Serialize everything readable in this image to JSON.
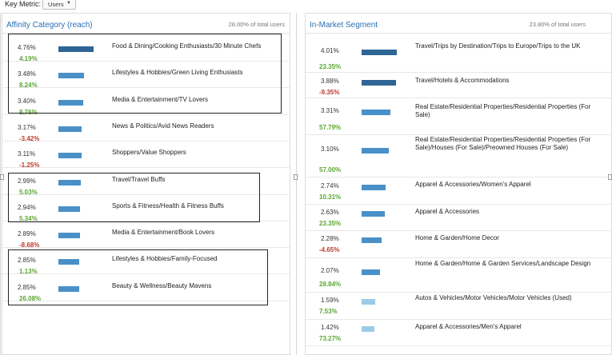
{
  "key_metric": {
    "label": "Key Metric:",
    "selected": "Users"
  },
  "affinity": {
    "title": "Affinity Category (reach)",
    "total": "28.00% of total users",
    "rows": [
      {
        "pct": "4.76%",
        "change": "4.19%",
        "name": "Food & Dining/Cooking Enthusiasts/30 Minute Chefs",
        "share": 4.76
      },
      {
        "pct": "3.48%",
        "change": "8.24%",
        "name": "Lifestyles & Hobbies/Green Living Enthusiasts",
        "share": 3.48
      },
      {
        "pct": "3.40%",
        "change": "8.76%",
        "name": "Media & Entertainment/TV Lovers",
        "share": 3.4
      },
      {
        "pct": "3.17%",
        "change": "-3.42%",
        "name": "News & Politics/Avid News Readers",
        "share": 3.17
      },
      {
        "pct": "3.11%",
        "change": "-1.25%",
        "name": "Shoppers/Value Shoppers",
        "share": 3.11
      },
      {
        "pct": "2.99%",
        "change": "5.03%",
        "name": "Travel/Travel Buffs",
        "share": 2.99
      },
      {
        "pct": "2.94%",
        "change": "5.34%",
        "name": "Sports & Fitness/Health & Fitness Buffs",
        "share": 2.94
      },
      {
        "pct": "2.89%",
        "change": "-8.68%",
        "name": "Media & Entertainment/Book Lovers",
        "share": 2.89
      },
      {
        "pct": "2.85%",
        "change": "1.13%",
        "name": "Lifestyles & Hobbies/Family-Focused",
        "share": 2.85
      },
      {
        "pct": "2.85%",
        "change": "26.08%",
        "name": "Beauty & Wellness/Beauty Mavens",
        "share": 2.85
      }
    ]
  },
  "inmarket": {
    "title": "In-Market Segment",
    "total": "23.80% of total users",
    "rows": [
      {
        "pct": "4.01%",
        "change": "23.35%",
        "name": "Travel/Trips by Destination/Trips to Europe/Trips to the UK",
        "share": 4.01
      },
      {
        "pct": "3.88%",
        "change": "-9.35%",
        "name": "Travel/Hotels & Accommodations",
        "share": 3.88
      },
      {
        "pct": "3.31%",
        "change": "57.79%",
        "name": "Real Estate/Residential Properties/Residential Properties (For Sale)",
        "share": 3.31
      },
      {
        "pct": "3.10%",
        "change": "57.00%",
        "name": "Real Estate/Residential Properties/Residential Properties (For Sale)/Houses (For Sale)/Preowned Houses (For Sale)",
        "share": 3.1
      },
      {
        "pct": "2.74%",
        "change": "10.31%",
        "name": "Apparel & Accessories/Women's Apparel",
        "share": 2.74
      },
      {
        "pct": "2.63%",
        "change": "23.35%",
        "name": "Apparel & Accessories",
        "share": 2.63
      },
      {
        "pct": "2.28%",
        "change": "-4.65%",
        "name": "Home & Garden/Home Decor",
        "share": 2.28
      },
      {
        "pct": "2.07%",
        "change": "28.84%",
        "name": "Home & Garden/Home & Garden Services/Landscape Design",
        "share": 2.07
      },
      {
        "pct": "1.59%",
        "change": "7.53%",
        "name": "Autos & Vehicles/Motor Vehicles/Motor Vehicles (Used)",
        "share": 1.59
      },
      {
        "pct": "1.42%",
        "change": "73.27%",
        "name": "Apparel & Accessories/Men's Apparel",
        "share": 1.42
      }
    ]
  },
  "colors": {
    "title_blue": "#2a6eb5",
    "bar_dark": "#2e6595",
    "bar_mid": "#4a90c8",
    "bar_light": "#9ccbe8",
    "positive": "#5aa632",
    "negative": "#c0392b"
  }
}
